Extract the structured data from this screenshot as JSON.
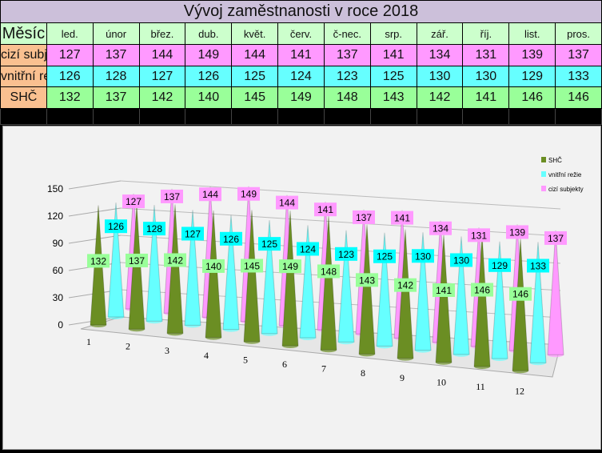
{
  "title": "Vývoj zaměstnanosti v roce 2018",
  "table": {
    "header_label": "Měsíc",
    "months": [
      "led.",
      "únor",
      "břez.",
      "dub.",
      "květ.",
      "červ.",
      "č-nec.",
      "srp.",
      "zář.",
      "říj.",
      "list.",
      "pros."
    ],
    "rows": [
      {
        "label": "cizí subjekty",
        "values": [
          127,
          137,
          144,
          149,
          144,
          141,
          137,
          141,
          134,
          131,
          139,
          137
        ]
      },
      {
        "label": "vnitřní režie",
        "values": [
          126,
          128,
          127,
          126,
          125,
          124,
          123,
          125,
          130,
          130,
          129,
          133
        ]
      },
      {
        "label": "SHČ",
        "values": [
          132,
          137,
          142,
          140,
          145,
          149,
          148,
          143,
          142,
          141,
          146,
          146
        ]
      }
    ]
  },
  "chart_data": {
    "type": "bar",
    "style": "3d-cone",
    "categories": [
      "1",
      "2",
      "3",
      "4",
      "5",
      "6",
      "7",
      "8",
      "9",
      "10",
      "11",
      "12"
    ],
    "series": [
      {
        "name": "SHČ",
        "color": "#6b8e23",
        "label_bg": "#99ff99",
        "values": [
          132,
          137,
          142,
          140,
          145,
          149,
          148,
          143,
          142,
          141,
          146,
          146
        ]
      },
      {
        "name": "vnitřní režie",
        "color": "#66ffff",
        "label_bg": "#00ffff",
        "values": [
          126,
          128,
          127,
          126,
          125,
          124,
          123,
          125,
          130,
          130,
          129,
          133
        ]
      },
      {
        "name": "cizí subjekty",
        "color": "#ff99ff",
        "label_bg": "#ff99ff",
        "values": [
          127,
          137,
          144,
          149,
          144,
          141,
          137,
          141,
          134,
          131,
          139,
          137
        ]
      }
    ],
    "yticks": [
      0,
      30,
      60,
      90,
      120,
      150
    ],
    "ylim": [
      0,
      150
    ],
    "legend": "top-right",
    "grid": true
  }
}
